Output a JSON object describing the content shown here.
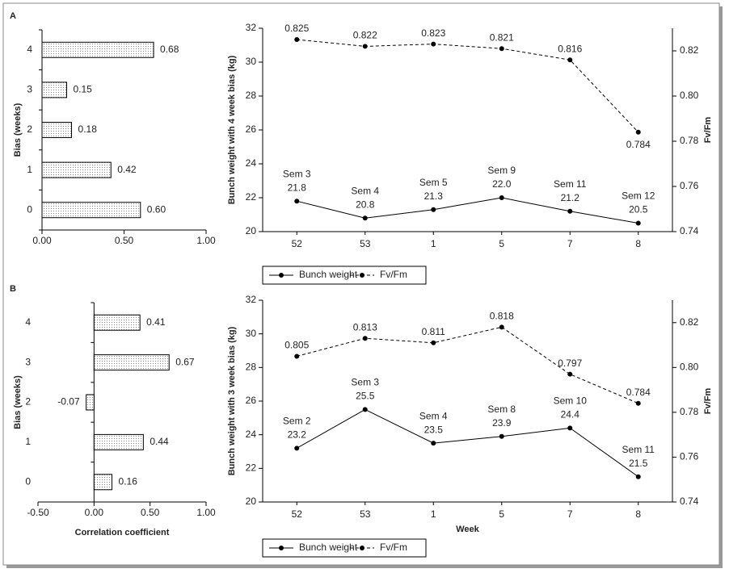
{
  "chart_data": [
    {
      "type": "bar",
      "panel": "A",
      "ylabel": "Bias (weeks)",
      "categories": [
        "4",
        "3",
        "2",
        "1",
        "0"
      ],
      "values": [
        0.68,
        0.15,
        0.18,
        0.42,
        0.6
      ],
      "value_labels": [
        "0.68",
        "0.15",
        "0.18",
        "0.42",
        "0.60"
      ],
      "xlim": [
        0,
        1
      ],
      "xticks": [
        {
          "value": 0,
          "label": "0.00"
        },
        {
          "value": 0.5,
          "label": "0.50"
        },
        {
          "value": 1,
          "label": "1.00"
        }
      ]
    },
    {
      "type": "line",
      "ylabel": "Bunch weight with 4 week bias (kg)",
      "y2label": "Fv/Fm",
      "categories": [
        "52",
        "53",
        "1",
        "5",
        "7",
        "8"
      ],
      "series": [
        {
          "name": "Bunch weight",
          "color": "#000000",
          "values": [
            21.8,
            20.8,
            21.3,
            22.0,
            21.2,
            20.5
          ],
          "value_labels": [
            "21.8",
            "20.8",
            "21.3",
            "22.0",
            "21.2",
            "20.5"
          ],
          "annotations": [
            "Sem 3",
            "Sem 4",
            "Sem 5",
            "Sem 9",
            "Sem 11",
            "Sem 12"
          ]
        },
        {
          "name": "Fv/Fm",
          "color": "#000000",
          "dashed": true,
          "axis": "y2",
          "values": [
            0.825,
            0.822,
            0.823,
            0.821,
            0.816,
            0.784
          ]
        }
      ],
      "ylim": [
        20,
        32
      ],
      "yticks": [
        20,
        22,
        24,
        26,
        28,
        30,
        32
      ],
      "y2lim": [
        0.74,
        0.83
      ],
      "y2ticks": [
        0.74,
        0.76,
        0.78,
        {
          "value": 0.8,
          "label": "0.80"
        },
        0.82
      ]
    },
    {
      "type": "bar",
      "panel": "B",
      "ylabel": "Bias (weeks)",
      "xlabel": "Correlation coefficient",
      "categories": [
        "4",
        "3",
        "2",
        "1",
        "0"
      ],
      "values": [
        0.41,
        0.67,
        -0.07,
        0.44,
        0.16
      ],
      "xlim": [
        -0.5,
        1
      ],
      "xticks": [
        {
          "value": -0.5,
          "label": "-0.50"
        },
        {
          "value": 0,
          "label": "0.00"
        },
        {
          "value": 0.5,
          "label": "0.50"
        },
        {
          "value": 1,
          "label": "1.00"
        }
      ]
    },
    {
      "type": "line",
      "ylabel": "Bunch weight with 3 week bias (kg)",
      "y2label": "Fv/Fm",
      "xlabel": "Week",
      "categories": [
        "52",
        "53",
        "1",
        "5",
        "7",
        "8"
      ],
      "series": [
        {
          "name": "Bunch weight",
          "color": "#000000",
          "values": [
            23.2,
            25.5,
            23.5,
            23.9,
            24.4,
            21.5
          ],
          "annotations": [
            "Sem 2",
            "Sem 3",
            "Sem 4",
            "Sem 8",
            "Sem 10",
            "Sem 11"
          ]
        },
        {
          "name": "Fv/Fm",
          "color": "#000000",
          "dashed": true,
          "axis": "y2",
          "values": [
            0.805,
            0.813,
            0.811,
            0.818,
            0.797,
            0.784
          ]
        }
      ],
      "ylim": [
        20,
        32
      ],
      "yticks": [
        20,
        22,
        24,
        26,
        28,
        30,
        32
      ],
      "y2lim": [
        0.74,
        0.83
      ],
      "y2ticks": [
        0.74,
        0.76,
        0.78,
        {
          "value": 0.8,
          "label": "0.80"
        },
        0.82
      ]
    }
  ]
}
